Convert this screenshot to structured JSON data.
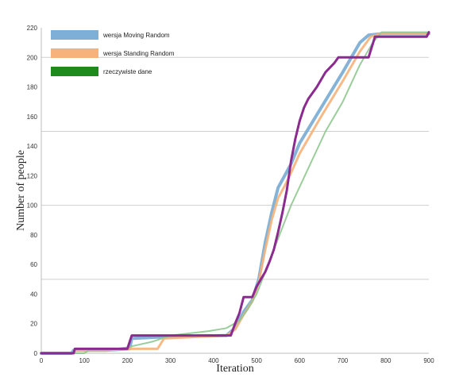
{
  "chart_data": {
    "type": "line",
    "title": "",
    "xlabel": "Iteration",
    "ylabel": "Number of people",
    "xlim": [
      0,
      900
    ],
    "ylim": [
      0,
      220
    ],
    "x_ticks": [
      0,
      100,
      200,
      300,
      400,
      500,
      600,
      700,
      800,
      900
    ],
    "y_ticks": [
      0,
      20,
      40,
      60,
      80,
      100,
      120,
      140,
      160,
      180,
      200,
      220
    ],
    "grid_y": [
      50,
      100,
      150,
      200
    ],
    "legend_position": "top-left",
    "series": [
      {
        "name": "wersja Moving Random",
        "color": "#7eafd6",
        "points": [
          [
            0,
            0
          ],
          [
            70,
            0
          ],
          [
            75,
            2
          ],
          [
            150,
            2
          ],
          [
            205,
            3
          ],
          [
            210,
            10
          ],
          [
            280,
            11
          ],
          [
            430,
            12
          ],
          [
            450,
            17
          ],
          [
            470,
            28
          ],
          [
            490,
            36
          ],
          [
            505,
            50
          ],
          [
            520,
            75
          ],
          [
            535,
            95
          ],
          [
            550,
            112
          ],
          [
            565,
            120
          ],
          [
            580,
            128
          ],
          [
            600,
            142
          ],
          [
            650,
            166
          ],
          [
            700,
            190
          ],
          [
            740,
            210
          ],
          [
            760,
            215
          ],
          [
            790,
            216
          ],
          [
            900,
            216
          ]
        ]
      },
      {
        "name": "wersja Standing Random",
        "color": "#f6b27a",
        "points": [
          [
            0,
            0
          ],
          [
            75,
            0
          ],
          [
            80,
            2
          ],
          [
            150,
            2
          ],
          [
            205,
            3
          ],
          [
            270,
            3
          ],
          [
            285,
            10
          ],
          [
            430,
            12
          ],
          [
            450,
            16
          ],
          [
            470,
            26
          ],
          [
            490,
            35
          ],
          [
            505,
            48
          ],
          [
            520,
            70
          ],
          [
            535,
            90
          ],
          [
            550,
            105
          ],
          [
            565,
            113
          ],
          [
            580,
            122
          ],
          [
            600,
            135
          ],
          [
            650,
            160
          ],
          [
            700,
            184
          ],
          [
            740,
            204
          ],
          [
            765,
            214
          ],
          [
            790,
            216
          ],
          [
            900,
            216
          ]
        ]
      },
      {
        "name": "rzeczywiste dane",
        "color": "#8fc88f",
        "points": [
          [
            0,
            0
          ],
          [
            100,
            0
          ],
          [
            110,
            2
          ],
          [
            150,
            2
          ],
          [
            200,
            4
          ],
          [
            230,
            6
          ],
          [
            260,
            8
          ],
          [
            300,
            12
          ],
          [
            390,
            15
          ],
          [
            430,
            17
          ],
          [
            460,
            22
          ],
          [
            480,
            30
          ],
          [
            500,
            40
          ],
          [
            520,
            55
          ],
          [
            540,
            70
          ],
          [
            560,
            85
          ],
          [
            580,
            100
          ],
          [
            620,
            125
          ],
          [
            660,
            150
          ],
          [
            700,
            170
          ],
          [
            740,
            195
          ],
          [
            770,
            210
          ],
          [
            790,
            217
          ],
          [
            900,
            217
          ]
        ]
      },
      {
        "name": "",
        "color": "#8b2a8f",
        "points": [
          [
            0,
            0
          ],
          [
            75,
            0
          ],
          [
            78,
            3
          ],
          [
            200,
            3
          ],
          [
            210,
            12
          ],
          [
            440,
            12
          ],
          [
            450,
            20
          ],
          [
            460,
            27
          ],
          [
            470,
            38
          ],
          [
            490,
            38
          ],
          [
            500,
            45
          ],
          [
            510,
            50
          ],
          [
            520,
            55
          ],
          [
            530,
            62
          ],
          [
            540,
            70
          ],
          [
            550,
            82
          ],
          [
            560,
            95
          ],
          [
            570,
            110
          ],
          [
            580,
            130
          ],
          [
            590,
            145
          ],
          [
            600,
            157
          ],
          [
            610,
            166
          ],
          [
            620,
            172
          ],
          [
            640,
            180
          ],
          [
            660,
            190
          ],
          [
            680,
            196
          ],
          [
            690,
            200
          ],
          [
            760,
            200
          ],
          [
            775,
            214
          ],
          [
            895,
            214
          ],
          [
            900,
            217
          ]
        ]
      }
    ]
  }
}
